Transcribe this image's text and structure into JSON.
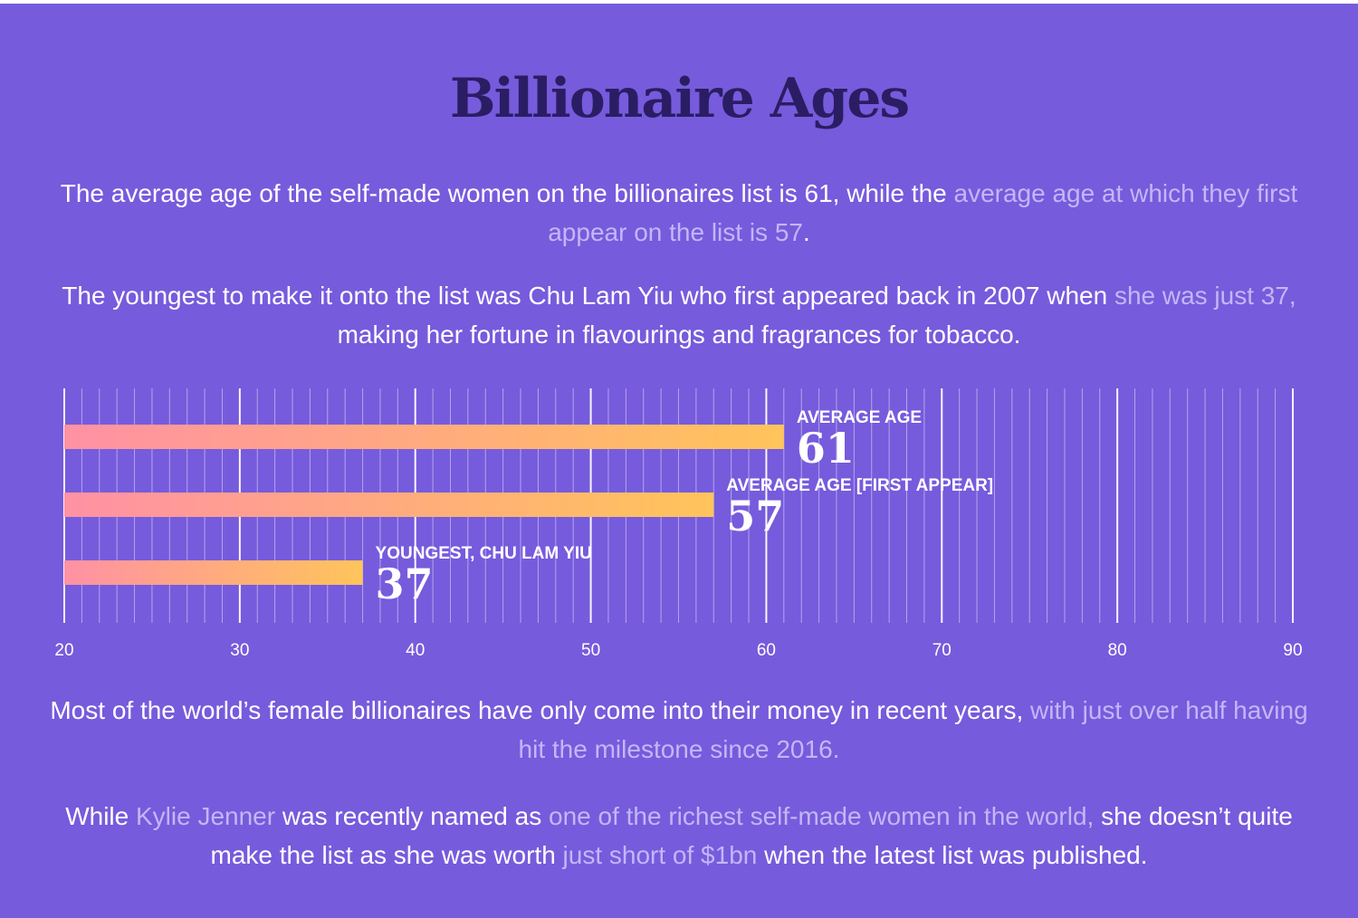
{
  "title": "Billionaire Ages",
  "intro": [
    {
      "text": "The average age of the self-made women on the billionaires list is 61, while the ",
      "hl": false
    },
    {
      "text": "average age at which they first appear on the list is 57",
      "hl": true
    },
    {
      "text": ".",
      "hl": false
    }
  ],
  "youngest_text": [
    {
      "text": "The youngest to make it onto the list was Chu Lam Yiu who first appeared back in 2007 when ",
      "hl": false
    },
    {
      "text": "she was just 37,",
      "hl": true
    },
    {
      "text": " making her fortune in flavourings and fragrances for tobacco.",
      "hl": false
    }
  ],
  "recent_text": [
    {
      "text": "Most of the world’s female billionaires have only come into their money in recent years, ",
      "hl": false
    },
    {
      "text": "with just over half having hit the milestone since 2016.",
      "hl": true
    }
  ],
  "kylie_text": [
    {
      "text": "While ",
      "hl": false
    },
    {
      "text": "Kylie Jenner",
      "hl": true
    },
    {
      "text": " was recently named as ",
      "hl": false
    },
    {
      "text": "one of the richest self-made women in the world,",
      "hl": true
    },
    {
      "text": " she doesn’t quite make the list as she was worth ",
      "hl": false
    },
    {
      "text": "just short of $1bn",
      "hl": true
    },
    {
      "text": " when the latest list was published.",
      "hl": false
    }
  ],
  "colors": {
    "background": "#765bdc",
    "title": "#2b1d63",
    "highlight": "#c2b7f7",
    "bar_start": "#ff91a4",
    "bar_end": "#ffc45a"
  },
  "chart_data": {
    "type": "bar",
    "orientation": "horizontal",
    "title": "",
    "xlabel": "",
    "ylabel": "",
    "xlim": [
      20,
      90
    ],
    "major_ticks": [
      20,
      30,
      40,
      50,
      60,
      70,
      80,
      90
    ],
    "minor_tick_step": 1,
    "grid": true,
    "categories": [
      "AVERAGE AGE",
      "AVERAGE AGE [FIRST APPEAR]",
      "YOUNGEST, CHU LAM YIU"
    ],
    "values": [
      61,
      57,
      37
    ],
    "data_labels": [
      "61",
      "57",
      "37"
    ]
  }
}
